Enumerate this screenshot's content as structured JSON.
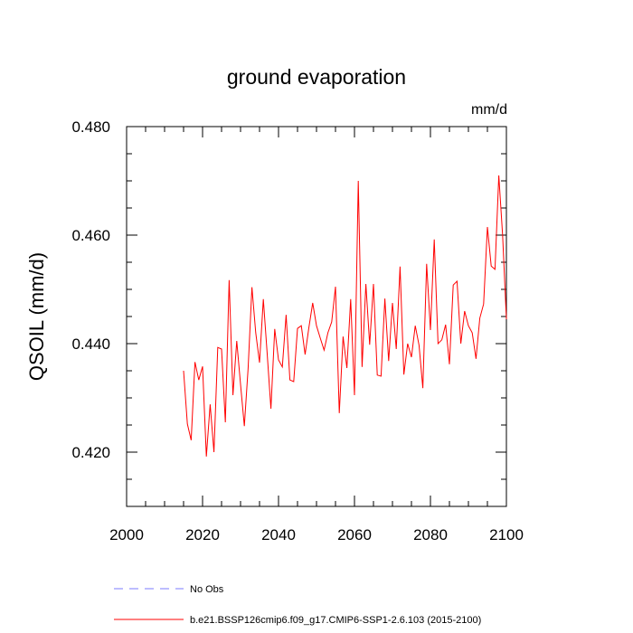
{
  "chart_data": {
    "type": "line",
    "title": "ground evaporation",
    "units": "mm/d",
    "xlabel": "",
    "ylabel": "QSOIL  (mm/d)",
    "xlim": [
      2000,
      2100
    ],
    "ylim": [
      0.41,
      0.48
    ],
    "x_ticks": [
      2000,
      2020,
      2040,
      2060,
      2080,
      2100
    ],
    "y_ticks": [
      0.42,
      0.44,
      0.46,
      0.48
    ],
    "y_tick_labels": [
      "0.420",
      "0.440",
      "0.460",
      "0.480"
    ],
    "legend": [
      {
        "label": "No Obs",
        "style": "dashed",
        "color": "#7b7bff"
      },
      {
        "label": "b.e21.BSSP126cmip6.f09_g17.CMIP6-SSP1-2.6.103 (2015-2100)",
        "style": "solid",
        "color": "#ff0000"
      }
    ],
    "series": [
      {
        "name": "b.e21.BSSP126cmip6.f09_g17.CMIP6-SSP1-2.6.103 (2015-2100)",
        "color": "#ff0000",
        "x_start": 2015,
        "values": [
          0.435,
          0.4252,
          0.4222,
          0.4366,
          0.4333,
          0.4358,
          0.4192,
          0.4288,
          0.42,
          0.4393,
          0.439,
          0.4255,
          0.4517,
          0.4305,
          0.4405,
          0.4325,
          0.4248,
          0.4355,
          0.4504,
          0.442,
          0.4365,
          0.4482,
          0.4383,
          0.428,
          0.4427,
          0.437,
          0.4357,
          0.4453,
          0.4333,
          0.433,
          0.4428,
          0.4433,
          0.438,
          0.443,
          0.4475,
          0.4433,
          0.441,
          0.4388,
          0.442,
          0.444,
          0.4505,
          0.4272,
          0.4413,
          0.4355,
          0.4482,
          0.4305,
          0.47,
          0.4357,
          0.451,
          0.4398,
          0.451,
          0.4342,
          0.434,
          0.4483,
          0.4368,
          0.4475,
          0.439,
          0.4542,
          0.4343,
          0.44,
          0.4375,
          0.4433,
          0.4397,
          0.4318,
          0.4547,
          0.4425,
          0.4592,
          0.44,
          0.4407,
          0.4435,
          0.4362,
          0.4508,
          0.4515,
          0.44,
          0.446,
          0.4433,
          0.442,
          0.4372,
          0.4447,
          0.4473,
          0.4615,
          0.4543,
          0.4537,
          0.471,
          0.46,
          0.4445
        ]
      }
    ]
  }
}
